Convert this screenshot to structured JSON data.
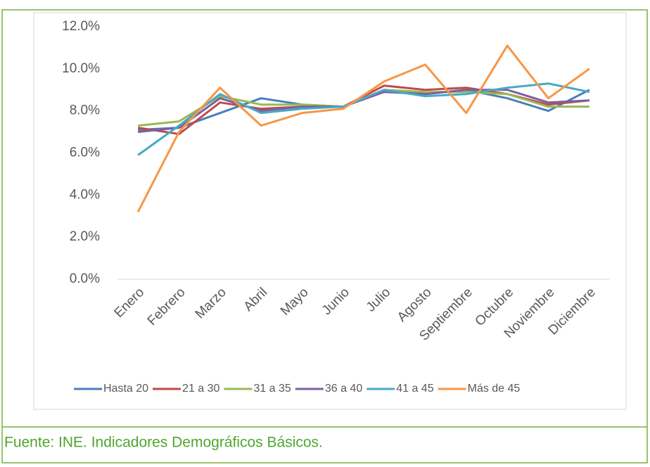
{
  "chart_data": {
    "type": "line",
    "categories": [
      "Enero",
      "Febrero",
      "Marzo",
      "Abril",
      "Mayo",
      "Junio",
      "Julio",
      "Agosto",
      "Septiembre",
      "Octubre",
      "Noviembre",
      "Diciembre"
    ],
    "series": [
      {
        "name": "Hasta 20",
        "color": "#4a7ebb",
        "values": [
          7.1,
          7.2,
          7.9,
          8.6,
          8.3,
          8.2,
          9.0,
          8.8,
          9.0,
          8.6,
          8.0,
          9.0
        ]
      },
      {
        "name": "21 a 30",
        "color": "#be4b48",
        "values": [
          7.2,
          6.9,
          8.4,
          8.1,
          8.2,
          8.2,
          9.2,
          9.0,
          9.1,
          8.8,
          8.3,
          8.5
        ]
      },
      {
        "name": "31 a 35",
        "color": "#98b954",
        "values": [
          7.3,
          7.5,
          8.7,
          8.3,
          8.3,
          8.2,
          9.0,
          8.9,
          8.9,
          8.8,
          8.2,
          8.2
        ]
      },
      {
        "name": "36 a 40",
        "color": "#7d5fa0",
        "values": [
          7.0,
          7.2,
          8.6,
          8.0,
          8.2,
          8.2,
          8.9,
          8.8,
          9.0,
          9.0,
          8.4,
          8.5
        ]
      },
      {
        "name": "41 a 45",
        "color": "#46aac5",
        "values": [
          5.9,
          7.3,
          8.8,
          7.9,
          8.1,
          8.2,
          9.0,
          8.7,
          8.8,
          9.1,
          9.3,
          8.9
        ]
      },
      {
        "name": "Más de 45",
        "color": "#f79646",
        "values": [
          3.2,
          7.0,
          9.1,
          7.3,
          7.9,
          8.1,
          9.4,
          10.2,
          7.9,
          11.1,
          8.6,
          10.0
        ]
      }
    ],
    "ylim": [
      0,
      12
    ],
    "yticks": [
      {
        "value": 0,
        "label": "0.0%"
      },
      {
        "value": 2,
        "label": "2.0%"
      },
      {
        "value": 4,
        "label": "4.0%"
      },
      {
        "value": 6,
        "label": "6.0%"
      },
      {
        "value": 8,
        "label": "8.0%"
      },
      {
        "value": 10,
        "label": "10.0%"
      },
      {
        "value": 12,
        "label": "12.0%"
      }
    ],
    "grid": false,
    "legend": "bottom"
  },
  "source": "Fuente: INE. Indicadores Demográficos Básicos."
}
